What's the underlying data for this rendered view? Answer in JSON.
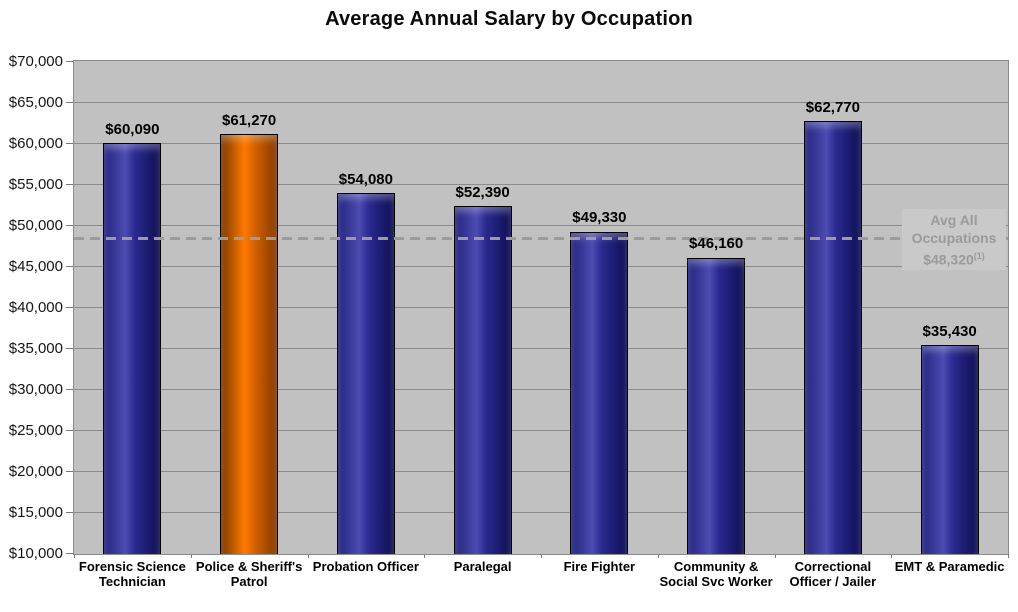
{
  "chart_data": {
    "type": "bar",
    "title": "Average Annual Salary by Occupation",
    "categories": [
      "Forensic Science Technician",
      "Police & Sheriff's Patrol",
      "Probation Officer",
      "Paralegal",
      "Fire Fighter",
      "Community & Social Svc Worker",
      "Correctional Officer / Jailer",
      "EMT & Paramedic"
    ],
    "values": [
      60090,
      61270,
      54080,
      52390,
      49330,
      46160,
      62770,
      35430
    ],
    "value_labels": [
      "$60,090",
      "$61,270",
      "$54,080",
      "$52,390",
      "$49,330",
      "$46,160",
      "$62,770",
      "$35,430"
    ],
    "highlight_index": 1,
    "xlabel": "",
    "ylabel": "",
    "ylim": [
      10000,
      70000
    ],
    "ytick_step": 5000,
    "ytick_labels": [
      "$10,000",
      "$15,000",
      "$20,000",
      "$25,000",
      "$30,000",
      "$35,000",
      "$40,000",
      "$45,000",
      "$50,000",
      "$55,000",
      "$60,000",
      "$65,000",
      "$70,000"
    ],
    "grid": true,
    "legend_position": "none",
    "reference_line": {
      "value": 48320,
      "style": "dashed",
      "label_lines": [
        "Avg All",
        "Occupations",
        "$48,320"
      ],
      "label_superscript": "(1)"
    }
  },
  "colors": {
    "bar_blue_edge": "#23237e",
    "bar_blue_highlight": "#4c4cb2",
    "bar_blue_shadow": "#0e0e52",
    "bar_orange_edge": "#7c3800",
    "bar_orange_highlight": "#ff7900",
    "bar_orange_shadow": "#833a00",
    "plot_background": "#c1c1c1",
    "gridline": "#8b8b8b",
    "axis_tick": "#7a7a7a",
    "reference_line": "#9c9c9c",
    "reference_text": "#9a9a9a",
    "reference_label_background": "#c9c9c9",
    "title_text": "#0a0a0a",
    "label_text": "#000000"
  }
}
